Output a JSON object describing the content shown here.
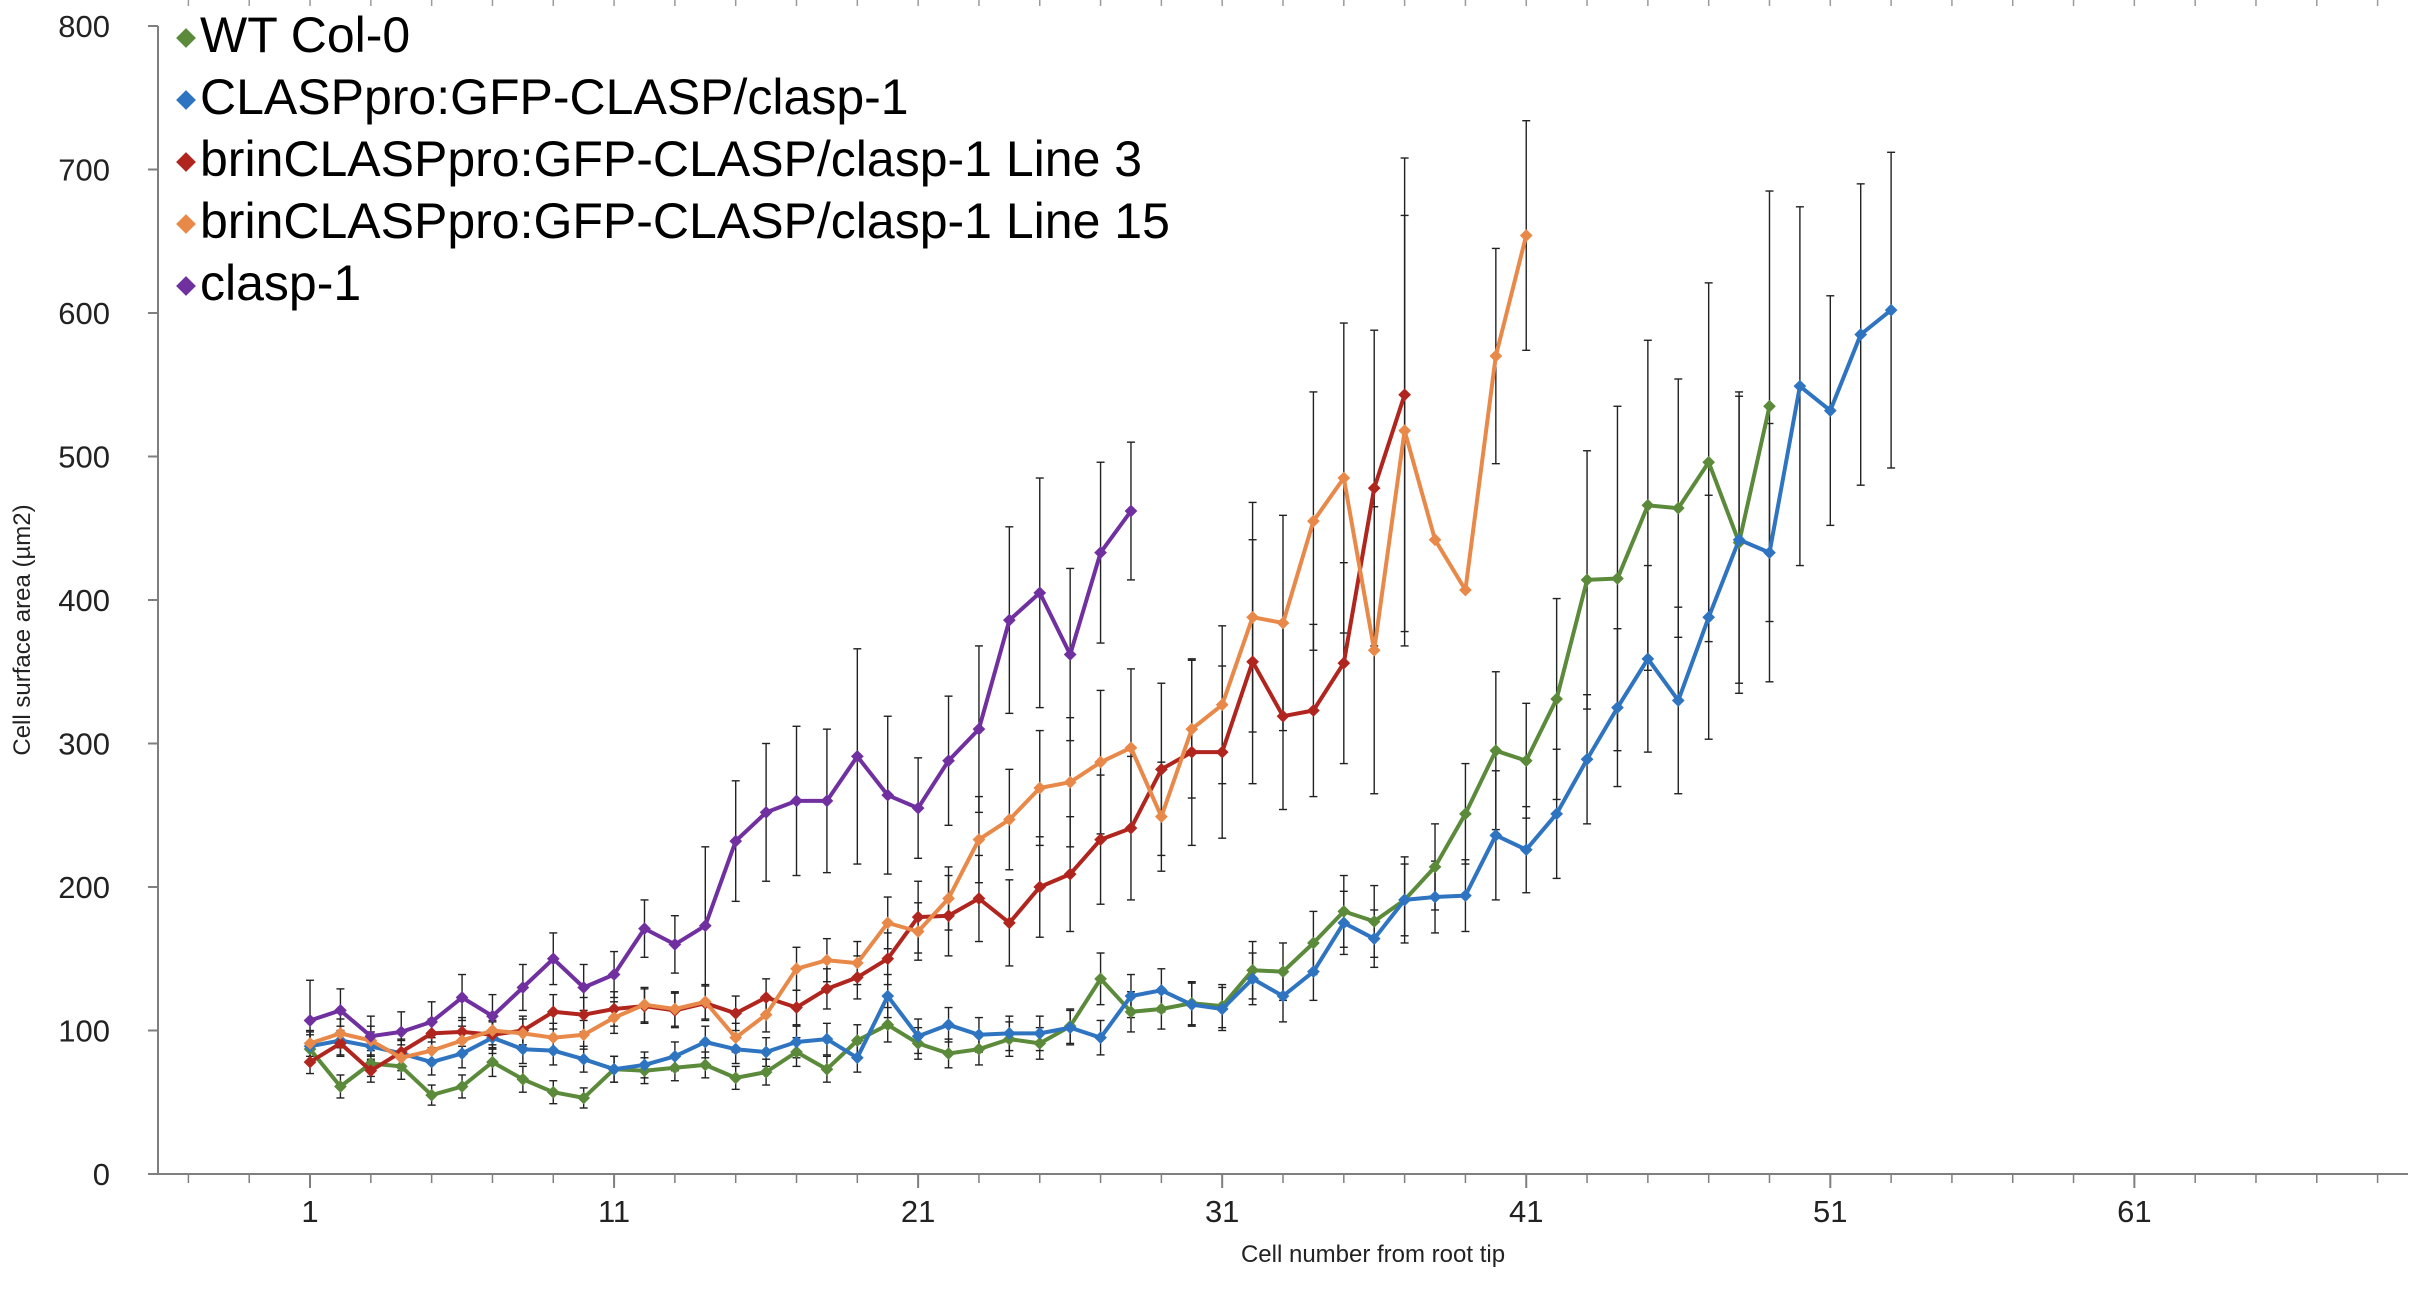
{
  "chart_data": {
    "type": "line",
    "title": "",
    "xlabel": "Cell number from root tip",
    "ylabel": "Cell surface area (µm2)",
    "xlim": [
      -4,
      70
    ],
    "ylim": [
      0,
      800
    ],
    "xticks": [
      1,
      11,
      21,
      31,
      41,
      51,
      61
    ],
    "xtick_labels": [
      "1",
      "11",
      "21",
      "31",
      "41",
      "51",
      "61"
    ],
    "yticks": [
      0,
      100,
      200,
      300,
      400,
      500,
      600,
      700,
      800
    ],
    "ytick_labels": [
      "0",
      "100",
      "200",
      "300",
      "400",
      "500",
      "600",
      "700",
      "800"
    ],
    "grid": false,
    "legend_position": "top-left",
    "series": [
      {
        "name": "WT Col-0",
        "color": "#5b8a3a",
        "x": [
          1,
          2,
          3,
          4,
          5,
          6,
          7,
          8,
          9,
          10,
          11,
          12,
          13,
          14,
          15,
          16,
          17,
          18,
          19,
          20,
          21,
          22,
          23,
          24,
          25,
          26,
          27,
          28,
          29,
          30,
          31,
          32,
          33,
          34,
          35,
          36,
          37,
          38,
          39,
          40,
          41,
          42,
          43,
          44,
          45,
          46,
          47,
          48,
          49
        ],
        "y": [
          87,
          61,
          77,
          75,
          55,
          61,
          78,
          66,
          57,
          53,
          73,
          72,
          74,
          76,
          67,
          71,
          85,
          73,
          93,
          104,
          91,
          84,
          87,
          94,
          91,
          103,
          136,
          113,
          115,
          119,
          117,
          142,
          141,
          161,
          183,
          176,
          191,
          214,
          251,
          295,
          288,
          331,
          414,
          415,
          466,
          464,
          496,
          440,
          535
        ],
        "err": [
          10,
          8,
          9,
          9,
          7,
          8,
          10,
          9,
          8,
          7,
          9,
          9,
          9,
          9,
          8,
          9,
          10,
          9,
          11,
          12,
          11,
          10,
          11,
          12,
          11,
          12,
          18,
          14,
          14,
          15,
          15,
          20,
          20,
          22,
          25,
          25,
          30,
          30,
          35,
          55,
          40,
          70,
          90,
          120,
          115,
          90,
          125,
          105,
          150
        ]
      },
      {
        "name": "CLASPpro:GFP-CLASP/clasp-1",
        "color": "#2e74c0",
        "x": [
          1,
          2,
          3,
          4,
          5,
          6,
          7,
          8,
          9,
          10,
          11,
          12,
          13,
          14,
          15,
          16,
          17,
          18,
          19,
          20,
          21,
          22,
          23,
          24,
          25,
          26,
          27,
          28,
          29,
          30,
          31,
          32,
          33,
          34,
          35,
          36,
          37,
          38,
          39,
          40,
          41,
          42,
          43,
          44,
          45,
          46,
          47,
          48,
          49,
          50,
          51,
          52,
          53
        ],
        "y": [
          89,
          93,
          89,
          84,
          78,
          84,
          95,
          87,
          86,
          80,
          73,
          76,
          82,
          92,
          87,
          85,
          92,
          94,
          81,
          124,
          96,
          104,
          97,
          98,
          98,
          102,
          95,
          124,
          128,
          118,
          115,
          136,
          124,
          141,
          175,
          164,
          191,
          193,
          194,
          236,
          226,
          251,
          289,
          325,
          359,
          330,
          388,
          442,
          433,
          549,
          532,
          585,
          602
        ],
        "err": [
          10,
          10,
          10,
          9,
          9,
          10,
          11,
          10,
          10,
          9,
          9,
          9,
          10,
          11,
          10,
          10,
          11,
          11,
          10,
          15,
          12,
          12,
          12,
          12,
          12,
          12,
          12,
          15,
          15,
          15,
          15,
          18,
          18,
          20,
          22,
          20,
          25,
          25,
          25,
          45,
          30,
          45,
          45,
          55,
          65,
          65,
          85,
          100,
          90,
          125,
          80,
          105,
          110
        ]
      },
      {
        "name": "brinCLASPpro:GFP-CLASP/clasp-1 Line 3",
        "color": "#b0261e",
        "x": [
          1,
          2,
          3,
          4,
          5,
          6,
          7,
          8,
          9,
          10,
          11,
          12,
          13,
          14,
          15,
          16,
          17,
          18,
          19,
          20,
          21,
          22,
          23,
          24,
          25,
          26,
          27,
          28,
          29,
          30,
          31,
          32,
          33,
          34,
          35,
          36,
          37
        ],
        "y": [
          78,
          91,
          72,
          85,
          98,
          99,
          97,
          100,
          113,
          111,
          115,
          117,
          114,
          119,
          112,
          123,
          116,
          129,
          137,
          150,
          179,
          180,
          192,
          175,
          200,
          209,
          233,
          241,
          282,
          294,
          294,
          357,
          319,
          323,
          356,
          478,
          543
        ],
        "err": [
          8,
          9,
          8,
          9,
          10,
          10,
          10,
          10,
          12,
          12,
          12,
          12,
          12,
          12,
          12,
          13,
          12,
          14,
          15,
          18,
          25,
          28,
          30,
          30,
          35,
          40,
          45,
          50,
          60,
          65,
          60,
          85,
          65,
          60,
          70,
          110,
          165
        ]
      },
      {
        "name": "brinCLASPpro:GFP-CLASP/clasp-1 Line 15",
        "color": "#e8894a",
        "x": [
          1,
          2,
          3,
          4,
          5,
          6,
          7,
          8,
          9,
          10,
          11,
          12,
          13,
          14,
          15,
          16,
          17,
          18,
          19,
          20,
          21,
          22,
          23,
          24,
          25,
          26,
          27,
          28,
          29,
          30,
          31,
          32,
          33,
          34,
          35,
          36,
          37,
          38,
          39,
          40,
          41
        ],
        "y": [
          91,
          98,
          93,
          81,
          86,
          93,
          100,
          98,
          95,
          97,
          109,
          118,
          115,
          120,
          95,
          111,
          143,
          149,
          147,
          175,
          169,
          192,
          233,
          247,
          269,
          273,
          287,
          297,
          249,
          310,
          327,
          388,
          384,
          455,
          485,
          365,
          518,
          442,
          407,
          570,
          654
        ],
        "err": [
          9,
          10,
          10,
          9,
          9,
          10,
          10,
          10,
          10,
          10,
          11,
          12,
          12,
          12,
          10,
          12,
          15,
          15,
          15,
          18,
          20,
          22,
          30,
          35,
          40,
          45,
          50,
          55,
          38,
          48,
          55,
          80,
          75,
          90,
          108,
          100,
          150,
          0,
          0,
          75,
          80
        ]
      },
      {
        "name": "clasp-1",
        "color": "#7030a0",
        "x": [
          1,
          2,
          3,
          4,
          5,
          6,
          7,
          8,
          9,
          10,
          11,
          12,
          13,
          14,
          15,
          16,
          17,
          18,
          19,
          20,
          21,
          22,
          23,
          24,
          25,
          26,
          27,
          28
        ],
        "y": [
          107,
          114,
          96,
          99,
          106,
          123,
          110,
          130,
          150,
          130,
          139,
          171,
          160,
          173,
          232,
          252,
          260,
          260,
          291,
          264,
          255,
          288,
          310,
          386,
          405,
          362,
          433,
          462
        ],
        "err": [
          28,
          15,
          14,
          14,
          14,
          16,
          15,
          16,
          18,
          16,
          16,
          20,
          20,
          55,
          42,
          48,
          52,
          50,
          75,
          55,
          35,
          45,
          58,
          65,
          80,
          60,
          63,
          48
        ]
      }
    ]
  }
}
